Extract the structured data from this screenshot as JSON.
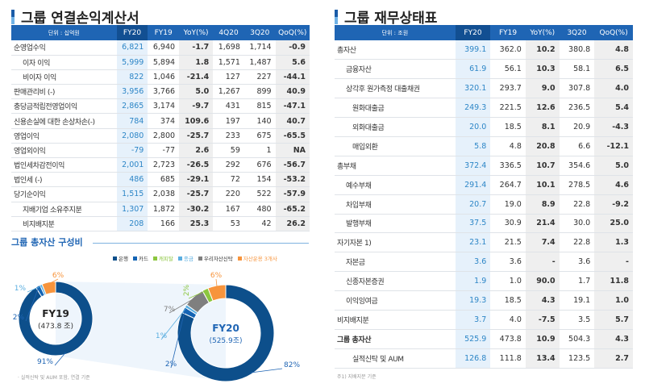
{
  "income": {
    "title": "그룹 연결손익계산서",
    "headers": [
      "단위 : 십억원",
      "FY20",
      "FY19",
      "YoY(%)",
      "4Q20",
      "3Q20",
      "QoQ(%)"
    ],
    "rows": [
      {
        "label": "순영업수익",
        "indent": 0,
        "v": [
          "6,821",
          "6,940",
          "-1.7",
          "1,698",
          "1,714",
          "-0.9"
        ]
      },
      {
        "label": "이자 이익",
        "indent": 1,
        "v": [
          "5,999",
          "5,894",
          "1.8",
          "1,571",
          "1,487",
          "5.6"
        ]
      },
      {
        "label": "비이자 이익",
        "indent": 1,
        "v": [
          "822",
          "1,046",
          "-21.4",
          "127",
          "227",
          "-44.1"
        ]
      },
      {
        "label": "판매관리비 (-)",
        "indent": 0,
        "v": [
          "3,956",
          "3,766",
          "5.0",
          "1,267",
          "899",
          "40.9"
        ]
      },
      {
        "label": "충당금적립전영업이익",
        "indent": 0,
        "v": [
          "2,865",
          "3,174",
          "-9.7",
          "431",
          "815",
          "-47.1"
        ]
      },
      {
        "label": "신용손실에 대한 손상차손(-)",
        "indent": 0,
        "v": [
          "784",
          "374",
          "109.6",
          "197",
          "140",
          "40.7"
        ]
      },
      {
        "label": "영업이익",
        "indent": 0,
        "v": [
          "2,080",
          "2,800",
          "-25.7",
          "233",
          "675",
          "-65.5"
        ]
      },
      {
        "label": "영업외이익",
        "indent": 0,
        "v": [
          "-79",
          "-77",
          "2.6",
          "59",
          "1",
          "NA"
        ]
      },
      {
        "label": "법인세차감전이익",
        "indent": 0,
        "v": [
          "2,001",
          "2,723",
          "-26.5",
          "292",
          "676",
          "-56.7"
        ]
      },
      {
        "label": "법인세 (-)",
        "indent": 0,
        "v": [
          "486",
          "685",
          "-29.1",
          "72",
          "154",
          "-53.2"
        ]
      },
      {
        "label": "당기순이익",
        "indent": 0,
        "v": [
          "1,515",
          "2,038",
          "-25.7",
          "220",
          "522",
          "-57.9"
        ]
      },
      {
        "label": "지배기업 소유주지분",
        "indent": 1,
        "v": [
          "1,307",
          "1,872",
          "-30.2",
          "167",
          "480",
          "-65.2"
        ]
      },
      {
        "label": "비지배지분",
        "indent": 1,
        "v": [
          "208",
          "166",
          "25.3",
          "53",
          "42",
          "26.2"
        ]
      }
    ]
  },
  "balance": {
    "title": "그룹 재무상태표",
    "headers": [
      "단위 : 조원",
      "FY20",
      "FY19",
      "YoY(%)",
      "3Q20",
      "QoQ(%)"
    ],
    "rows": [
      {
        "label": "총자산",
        "indent": 0,
        "v": [
          "399.1",
          "362.0",
          "10.2",
          "380.8",
          "4.8"
        ]
      },
      {
        "label": "금융자산",
        "indent": 1,
        "v": [
          "61.9",
          "56.1",
          "10.3",
          "58.1",
          "6.5"
        ]
      },
      {
        "label": "상각후 원가측정 대출채권",
        "indent": 1,
        "v": [
          "320.1",
          "293.7",
          "9.0",
          "307.8",
          "4.0"
        ]
      },
      {
        "label": "원화대출금",
        "indent": 2,
        "v": [
          "249.3",
          "221.5",
          "12.6",
          "236.5",
          "5.4"
        ]
      },
      {
        "label": "외화대출금",
        "indent": 2,
        "v": [
          "20.0",
          "18.5",
          "8.1",
          "20.9",
          "-4.3"
        ]
      },
      {
        "label": "매입외환",
        "indent": 2,
        "v": [
          "5.8",
          "4.8",
          "20.8",
          "6.6",
          "-12.1"
        ]
      },
      {
        "label": "총부채",
        "indent": 0,
        "v": [
          "372.4",
          "336.5",
          "10.7",
          "354.6",
          "5.0"
        ]
      },
      {
        "label": "예수부채",
        "indent": 1,
        "v": [
          "291.4",
          "264.7",
          "10.1",
          "278.5",
          "4.6"
        ]
      },
      {
        "label": "차입부채",
        "indent": 1,
        "v": [
          "20.7",
          "19.0",
          "8.9",
          "22.8",
          "-9.2"
        ]
      },
      {
        "label": "발행부채",
        "indent": 1,
        "v": [
          "37.5",
          "30.9",
          "21.4",
          "30.0",
          "25.0"
        ]
      },
      {
        "label": "자기자본 1)",
        "indent": 0,
        "v": [
          "23.1",
          "21.5",
          "7.4",
          "22.8",
          "1.3"
        ]
      },
      {
        "label": "자본금",
        "indent": 1,
        "v": [
          "3.6",
          "3.6",
          "-",
          "3.6",
          "-"
        ]
      },
      {
        "label": "신종자본증권",
        "indent": 1,
        "v": [
          "1.9",
          "1.0",
          "90.0",
          "1.7",
          "11.8"
        ]
      },
      {
        "label": "이익잉여금",
        "indent": 1,
        "v": [
          "19.3",
          "18.5",
          "4.3",
          "19.1",
          "1.0"
        ]
      },
      {
        "label": "비지배지분",
        "indent": 0,
        "v": [
          "3.7",
          "4.0",
          "-7.5",
          "3.5",
          "5.7"
        ]
      },
      {
        "label": "그룹 총자산",
        "indent": 0,
        "bold": true,
        "v": [
          "525.9",
          "473.8",
          "10.9",
          "504.3",
          "4.3"
        ]
      },
      {
        "label": "실적신탁 및 AUM",
        "indent": 2,
        "v": [
          "126.8",
          "111.8",
          "13.4",
          "123.5",
          "2.7"
        ]
      }
    ],
    "footnote": "주1) 지배지분 기준"
  },
  "composition": {
    "title": "그룹 총자산 구성비",
    "footnote": "· 실적신탁 및 AUM 포함, 연결 기준",
    "legend": [
      {
        "label": "은행",
        "color": "#0d4f8b"
      },
      {
        "label": "카드",
        "color": "#1464b4"
      },
      {
        "label": "캐피탈",
        "color": "#8cc63f"
      },
      {
        "label": "종금",
        "color": "#5aaee0"
      },
      {
        "label": "우리자산신탁",
        "color": "#7f7f7f"
      },
      {
        "label": "자산운용 3개사",
        "color": "#f7943c"
      }
    ]
  },
  "chart_data": [
    {
      "type": "pie",
      "donut": true,
      "center_label": "FY19",
      "center_sub": "(473.8 조)",
      "categories": [
        "은행",
        "카드",
        "종금",
        "자산운용 3개사"
      ],
      "values": [
        91,
        2,
        1,
        6
      ],
      "labels": [
        "91%",
        "2%",
        "1%",
        "6%"
      ]
    },
    {
      "type": "pie",
      "donut": true,
      "center_label": "FY20",
      "center_sub": "(525.9조)",
      "categories": [
        "은행",
        "카드",
        "종금",
        "우리자산신탁",
        "캐피탈",
        "자산운용 3개사"
      ],
      "values": [
        82,
        2,
        1,
        7,
        2,
        6
      ],
      "labels": [
        "82%",
        "2%",
        "1%",
        "7%",
        "2%",
        "6%"
      ]
    }
  ]
}
